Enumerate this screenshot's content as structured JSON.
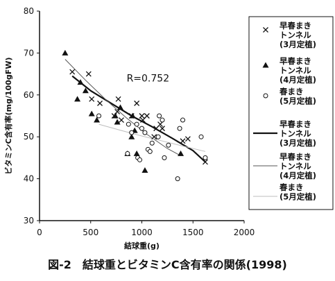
{
  "caption": "図-2　結球重とビタミンC含有率の関係(1998)",
  "chart_data": {
    "type": "scatter",
    "xlabel": "結球重(g)",
    "ylabel": "ビタミンC含有率(mg/100gFW)",
    "xlim": [
      0,
      2000
    ],
    "ylim": [
      30,
      80
    ],
    "xticks": [
      0,
      500,
      1000,
      1500,
      2000
    ],
    "yticks": [
      30,
      40,
      50,
      60,
      70,
      80
    ],
    "xtick_labels": [
      "0",
      "500",
      "1000",
      "1500",
      "2000"
    ],
    "ytick_labels": [
      "30",
      "40",
      "50",
      "60",
      "70",
      "80"
    ],
    "grid": false,
    "annotation": "R=0.752",
    "series": [
      {
        "name": "早春まき\nトンネル\n(3月定植)",
        "marker": "x",
        "points": [
          [
            320,
            65.5
          ],
          [
            480,
            65
          ],
          [
            510,
            59
          ],
          [
            590,
            58
          ],
          [
            730,
            55
          ],
          [
            770,
            59
          ],
          [
            760,
            56
          ],
          [
            800,
            54
          ],
          [
            900,
            55
          ],
          [
            950,
            58
          ],
          [
            1000,
            55
          ],
          [
            1010,
            54
          ],
          [
            1050,
            55
          ],
          [
            1120,
            50
          ],
          [
            1140,
            52
          ],
          [
            1180,
            53
          ],
          [
            1200,
            52
          ],
          [
            1400,
            49
          ],
          [
            1450,
            49.5
          ],
          [
            1620,
            44
          ]
        ]
      },
      {
        "name": "早春まき\nトンネル\n(4月定植)",
        "marker": "triangle",
        "points": [
          [
            250,
            70
          ],
          [
            400,
            63
          ],
          [
            450,
            61
          ],
          [
            370,
            59
          ],
          [
            510,
            55.5
          ],
          [
            560,
            54
          ],
          [
            740,
            55
          ],
          [
            760,
            53.5
          ],
          [
            790,
            57
          ],
          [
            860,
            46
          ],
          [
            910,
            55
          ],
          [
            930,
            51.5
          ],
          [
            950,
            46
          ],
          [
            1030,
            42
          ],
          [
            900,
            50
          ],
          [
            1380,
            46
          ]
        ]
      },
      {
        "name": "春まき\n(5月定植)",
        "marker": "circle",
        "points": [
          [
            580,
            55
          ],
          [
            860,
            46
          ],
          [
            870,
            53
          ],
          [
            900,
            51
          ],
          [
            950,
            53
          ],
          [
            960,
            45
          ],
          [
            980,
            44.5
          ],
          [
            1000,
            52
          ],
          [
            1030,
            51
          ],
          [
            1060,
            47
          ],
          [
            1080,
            46.5
          ],
          [
            1100,
            48.5
          ],
          [
            1160,
            50
          ],
          [
            1170,
            55
          ],
          [
            1200,
            54
          ],
          [
            1220,
            45
          ],
          [
            1260,
            48
          ],
          [
            1350,
            40
          ],
          [
            1370,
            52
          ],
          [
            1400,
            54
          ],
          [
            1580,
            50
          ],
          [
            1620,
            45
          ]
        ]
      }
    ],
    "trend_lines": [
      {
        "name": "早春まき\nトンネル\n(3月定植)",
        "style": "solid-thick",
        "x": [
          320,
          500,
          700,
          900,
          1100,
          1300,
          1500,
          1620
        ],
        "y": [
          64.5,
          61,
          58,
          55,
          52.4,
          49.6,
          46.7,
          44
        ]
      },
      {
        "name": "早春まき\nトンネル\n(4月定植)",
        "style": "solid-thin",
        "x": [
          250,
          450,
          650,
          850,
          1050,
          1250,
          1380
        ],
        "y": [
          68.5,
          63.5,
          58.8,
          54.5,
          50.6,
          47.2,
          45.5
        ]
      },
      {
        "name": "春まき\n(5月定植)",
        "style": "solid-faint",
        "x": [
          580,
          800,
          1000,
          1200,
          1400,
          1620
        ],
        "y": [
          53,
          51.5,
          50.2,
          49,
          47.8,
          46.5
        ]
      }
    ],
    "legend_position": "right"
  }
}
